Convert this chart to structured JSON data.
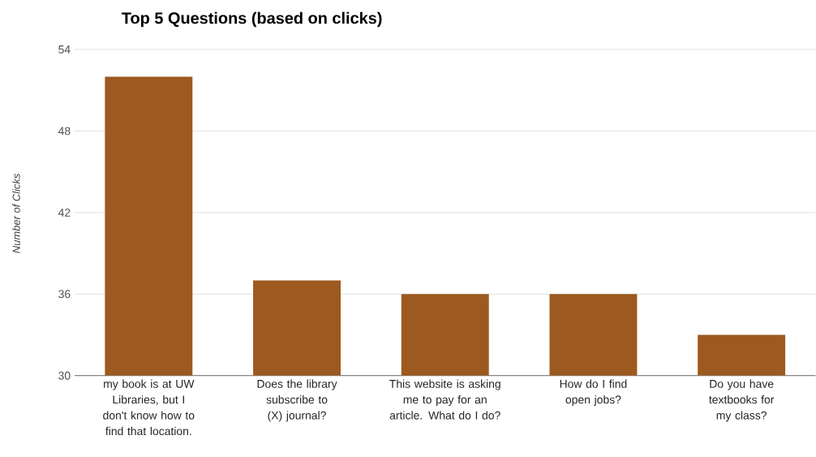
{
  "chart_data": {
    "type": "bar",
    "title": "Top 5 Questions (based on clicks)",
    "ylabel": "Number of Clicks",
    "categories": [
      "my book is at UW Libraries, but I don't know how to find that location.",
      "Does the library subscribe to (X) journal?",
      "This website is asking me to pay for an article. What do I do?",
      "How do I find open jobs?",
      "Do you have textbooks for my class?"
    ],
    "values": [
      52,
      37,
      36,
      36,
      33
    ],
    "color": "#9c5a20",
    "ylim": [
      30,
      54
    ],
    "yticks": [
      30,
      36,
      42,
      48,
      54
    ],
    "grid": "y"
  }
}
